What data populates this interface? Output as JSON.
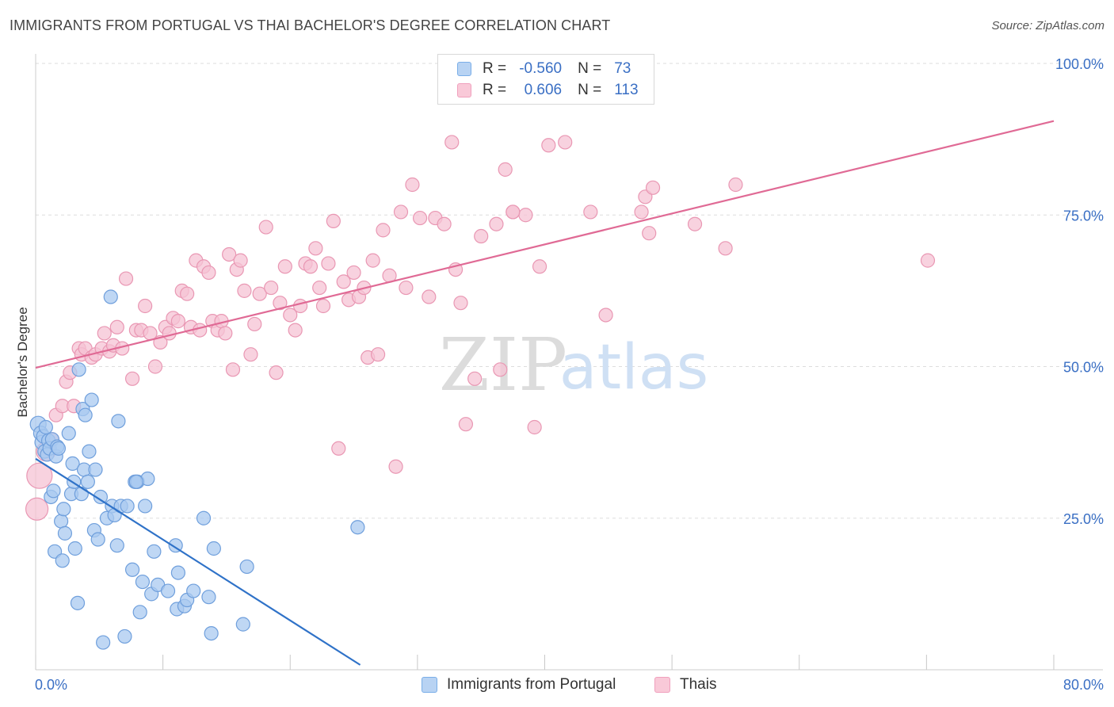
{
  "title": "IMMIGRANTS FROM PORTUGAL VS THAI BACHELOR'S DEGREE CORRELATION CHART",
  "source": "Source: ZipAtlas.com",
  "watermark": {
    "zip": "ZIP",
    "atlas": "atlas"
  },
  "legend": {
    "rows": [
      {
        "r_label": "R =",
        "r_value": "-0.560",
        "n_label": "N =",
        "n_value": "73",
        "color": "#7aaee8"
      },
      {
        "r_label": "R =",
        "r_value": "0.606",
        "n_label": "N =",
        "n_value": "113",
        "color": "#f0a0bd"
      }
    ]
  },
  "colors": {
    "blue_fill": "#a9c9f0",
    "blue_stroke": "#6f9fdc",
    "blue_line": "#2f72c8",
    "pink_fill": "#f6c3d4",
    "pink_stroke": "#e997b3",
    "pink_line": "#e06a95",
    "axis_label": "#3a6fc4",
    "grid": "#dddddd"
  },
  "chart_data": {
    "type": "scatter",
    "title": "IMMIGRANTS FROM PORTUGAL VS THAI BACHELOR'S DEGREE CORRELATION CHART",
    "xlabel": "",
    "ylabel": "Bachelor's Degree",
    "xlim": [
      0,
      80
    ],
    "ylim": [
      0,
      100
    ],
    "x_tick_labels": [
      "0.0%",
      "80.0%"
    ],
    "y_ticks": [
      25,
      50,
      75,
      100
    ],
    "y_tick_labels": [
      "25.0%",
      "50.0%",
      "75.0%",
      "100.0%"
    ],
    "grid": "horizontal dashed",
    "legend_position": "bottom-center",
    "series": [
      {
        "name": "Immigrants from Portugal",
        "r": -0.56,
        "n": 73,
        "trend": {
          "x": [
            0,
            25.5
          ],
          "y": [
            34.8,
            0.8
          ]
        },
        "points": [
          [
            0.2,
            40.5
          ],
          [
            0.4,
            39.0
          ],
          [
            0.5,
            37.5
          ],
          [
            0.6,
            38.5
          ],
          [
            0.7,
            36.0
          ],
          [
            0.8,
            40.0
          ],
          [
            0.9,
            35.5
          ],
          [
            1.0,
            37.8
          ],
          [
            1.1,
            36.5
          ],
          [
            1.2,
            28.5
          ],
          [
            1.3,
            38.0
          ],
          [
            1.4,
            29.5
          ],
          [
            1.5,
            19.5
          ],
          [
            1.6,
            35.2
          ],
          [
            1.7,
            36.8
          ],
          [
            1.8,
            36.5
          ],
          [
            2.0,
            24.5
          ],
          [
            2.1,
            18.0
          ],
          [
            2.2,
            26.5
          ],
          [
            2.3,
            22.5
          ],
          [
            2.6,
            39.0
          ],
          [
            2.8,
            29.0
          ],
          [
            2.9,
            34.0
          ],
          [
            3.0,
            31.0
          ],
          [
            3.1,
            20.0
          ],
          [
            3.3,
            11.0
          ],
          [
            3.4,
            49.5
          ],
          [
            3.6,
            29.0
          ],
          [
            3.7,
            43.0
          ],
          [
            3.8,
            33.0
          ],
          [
            3.9,
            42.0
          ],
          [
            4.1,
            31.0
          ],
          [
            4.2,
            36.0
          ],
          [
            4.4,
            44.5
          ],
          [
            4.6,
            23.0
          ],
          [
            4.7,
            33.0
          ],
          [
            4.9,
            21.5
          ],
          [
            5.1,
            28.5
          ],
          [
            5.3,
            4.5
          ],
          [
            5.6,
            25.0
          ],
          [
            5.9,
            61.5
          ],
          [
            6.0,
            27.0
          ],
          [
            6.2,
            25.5
          ],
          [
            6.4,
            20.5
          ],
          [
            6.5,
            41.0
          ],
          [
            6.7,
            27.0
          ],
          [
            7.0,
            5.5
          ],
          [
            7.2,
            27.0
          ],
          [
            7.6,
            16.5
          ],
          [
            7.8,
            31.0
          ],
          [
            8.0,
            31.0
          ],
          [
            8.2,
            9.5
          ],
          [
            8.4,
            14.5
          ],
          [
            8.6,
            27.0
          ],
          [
            8.8,
            31.5
          ],
          [
            9.1,
            12.5
          ],
          [
            9.3,
            19.5
          ],
          [
            9.6,
            14.0
          ],
          [
            10.4,
            13.0
          ],
          [
            11.0,
            20.5
          ],
          [
            11.1,
            10.0
          ],
          [
            11.2,
            16.0
          ],
          [
            11.7,
            10.5
          ],
          [
            11.9,
            11.5
          ],
          [
            12.4,
            13.0
          ],
          [
            13.2,
            25.0
          ],
          [
            13.6,
            12.0
          ],
          [
            13.8,
            6.0
          ],
          [
            14.0,
            20.0
          ],
          [
            16.3,
            7.5
          ],
          [
            16.6,
            17.0
          ],
          [
            25.3,
            23.5
          ],
          [
            7.9,
            31.0
          ]
        ]
      },
      {
        "name": "Thais",
        "r": 0.606,
        "n": 113,
        "trend": {
          "x": [
            0,
            80
          ],
          "y": [
            49.8,
            90.5
          ]
        },
        "points": [
          [
            0.1,
            26.5
          ],
          [
            0.3,
            32.0
          ],
          [
            0.8,
            36.0
          ],
          [
            1.3,
            38.0
          ],
          [
            1.6,
            42.0
          ],
          [
            2.1,
            43.5
          ],
          [
            2.4,
            47.5
          ],
          [
            2.7,
            49.0
          ],
          [
            3.0,
            43.5
          ],
          [
            3.4,
            53.0
          ],
          [
            3.6,
            52.0
          ],
          [
            3.9,
            53.0
          ],
          [
            4.4,
            51.5
          ],
          [
            4.7,
            52.0
          ],
          [
            5.2,
            53.0
          ],
          [
            5.4,
            55.5
          ],
          [
            5.8,
            52.5
          ],
          [
            6.1,
            53.5
          ],
          [
            6.4,
            56.5
          ],
          [
            6.8,
            53.0
          ],
          [
            7.1,
            64.5
          ],
          [
            7.6,
            48.0
          ],
          [
            7.9,
            56.0
          ],
          [
            8.3,
            56.0
          ],
          [
            8.6,
            60.0
          ],
          [
            9.0,
            55.5
          ],
          [
            9.4,
            50.0
          ],
          [
            9.8,
            54.0
          ],
          [
            10.2,
            56.5
          ],
          [
            10.5,
            55.5
          ],
          [
            10.8,
            58.0
          ],
          [
            11.2,
            57.5
          ],
          [
            11.5,
            62.5
          ],
          [
            11.9,
            62.0
          ],
          [
            12.2,
            56.5
          ],
          [
            12.6,
            67.5
          ],
          [
            12.9,
            56.0
          ],
          [
            13.2,
            66.5
          ],
          [
            13.6,
            65.5
          ],
          [
            13.9,
            57.5
          ],
          [
            14.3,
            56.0
          ],
          [
            14.6,
            57.5
          ],
          [
            14.9,
            55.5
          ],
          [
            15.2,
            68.5
          ],
          [
            15.5,
            49.5
          ],
          [
            15.8,
            66.0
          ],
          [
            16.1,
            67.5
          ],
          [
            16.4,
            62.5
          ],
          [
            16.9,
            52.0
          ],
          [
            17.2,
            57.0
          ],
          [
            17.6,
            62.0
          ],
          [
            18.1,
            73.0
          ],
          [
            18.5,
            63.0
          ],
          [
            18.9,
            49.0
          ],
          [
            19.2,
            60.5
          ],
          [
            19.6,
            66.5
          ],
          [
            20.0,
            58.5
          ],
          [
            20.4,
            56.0
          ],
          [
            20.8,
            60.0
          ],
          [
            21.2,
            67.0
          ],
          [
            21.6,
            66.5
          ],
          [
            22.0,
            69.5
          ],
          [
            22.3,
            63.0
          ],
          [
            22.6,
            60.0
          ],
          [
            23.0,
            67.0
          ],
          [
            23.4,
            74.0
          ],
          [
            23.8,
            36.5
          ],
          [
            24.2,
            64.0
          ],
          [
            24.6,
            61.0
          ],
          [
            25.0,
            65.5
          ],
          [
            25.4,
            61.5
          ],
          [
            25.8,
            63.0
          ],
          [
            26.1,
            51.5
          ],
          [
            26.5,
            67.5
          ],
          [
            26.9,
            52.0
          ],
          [
            27.3,
            72.5
          ],
          [
            27.8,
            65.0
          ],
          [
            28.3,
            33.5
          ],
          [
            28.7,
            75.5
          ],
          [
            29.1,
            63.0
          ],
          [
            29.6,
            80.0
          ],
          [
            30.2,
            74.5
          ],
          [
            30.9,
            61.5
          ],
          [
            31.4,
            74.5
          ],
          [
            32.1,
            73.5
          ],
          [
            32.7,
            87.0
          ],
          [
            33.0,
            66.0
          ],
          [
            33.4,
            60.5
          ],
          [
            33.8,
            40.5
          ],
          [
            34.5,
            48.0
          ],
          [
            35.0,
            71.5
          ],
          [
            36.2,
            73.5
          ],
          [
            36.5,
            49.5
          ],
          [
            36.9,
            82.5
          ],
          [
            37.5,
            75.5
          ],
          [
            38.5,
            75.0
          ],
          [
            39.2,
            40.0
          ],
          [
            39.6,
            66.5
          ],
          [
            40.3,
            86.5
          ],
          [
            41.6,
            87.0
          ],
          [
            43.6,
            75.5
          ],
          [
            44.8,
            58.5
          ],
          [
            47.6,
            75.5
          ],
          [
            47.9,
            78.0
          ],
          [
            48.2,
            72.0
          ],
          [
            48.5,
            79.5
          ],
          [
            51.8,
            73.5
          ],
          [
            54.2,
            69.5
          ],
          [
            55.0,
            80.0
          ],
          [
            70.1,
            67.5
          ],
          [
            37.5,
            75.5
          ]
        ]
      }
    ]
  },
  "bottom_legend": [
    {
      "label": "Immigrants from Portugal"
    },
    {
      "label": "Thais"
    }
  ]
}
